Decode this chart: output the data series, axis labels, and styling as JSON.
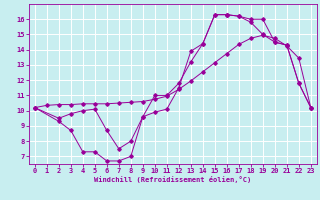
{
  "xlabel": "Windchill (Refroidissement éolien,°C)",
  "background_color": "#c8eef0",
  "grid_color": "#ffffff",
  "line_color": "#990099",
  "xlim": [
    -0.5,
    23.5
  ],
  "ylim": [
    6.5,
    17.0
  ],
  "xticks": [
    0,
    1,
    2,
    3,
    4,
    5,
    6,
    7,
    8,
    9,
    10,
    11,
    12,
    13,
    14,
    15,
    16,
    17,
    18,
    19,
    20,
    21,
    22,
    23
  ],
  "yticks": [
    7,
    8,
    9,
    10,
    11,
    12,
    13,
    14,
    15,
    16
  ],
  "line1_x": [
    0,
    1,
    2,
    3,
    4,
    5,
    6,
    7,
    8,
    9,
    10,
    11,
    12,
    13,
    14,
    15,
    16,
    17,
    18,
    19,
    20,
    21,
    22,
    23
  ],
  "line1_y": [
    10.2,
    10.35,
    10.4,
    10.4,
    10.45,
    10.45,
    10.45,
    10.5,
    10.55,
    10.6,
    10.75,
    10.95,
    11.4,
    11.95,
    12.55,
    13.15,
    13.75,
    14.35,
    14.75,
    14.95,
    14.75,
    14.25,
    13.45,
    10.2
  ],
  "line2_x": [
    0,
    2,
    3,
    4,
    5,
    6,
    7,
    8,
    9,
    10,
    11,
    12,
    13,
    14,
    15,
    16,
    16,
    17,
    18,
    19,
    20,
    21,
    22,
    23
  ],
  "line2_y": [
    10.2,
    9.3,
    8.7,
    7.3,
    7.3,
    6.7,
    6.7,
    7.0,
    9.6,
    11.0,
    11.0,
    11.8,
    13.2,
    14.4,
    16.3,
    16.3,
    16.3,
    16.2,
    16.0,
    16.0,
    14.5,
    14.3,
    11.8,
    10.2
  ],
  "line3_x": [
    0,
    2,
    3,
    4,
    5,
    6,
    7,
    8,
    9,
    10,
    11,
    12,
    13,
    14,
    15,
    16,
    17,
    18,
    19,
    20,
    21,
    22,
    23
  ],
  "line3_y": [
    10.2,
    9.5,
    9.8,
    10.0,
    10.1,
    8.7,
    7.5,
    8.0,
    9.6,
    9.9,
    10.1,
    11.5,
    13.9,
    14.4,
    16.3,
    16.3,
    16.2,
    15.8,
    15.0,
    14.5,
    14.3,
    11.8,
    10.2
  ]
}
